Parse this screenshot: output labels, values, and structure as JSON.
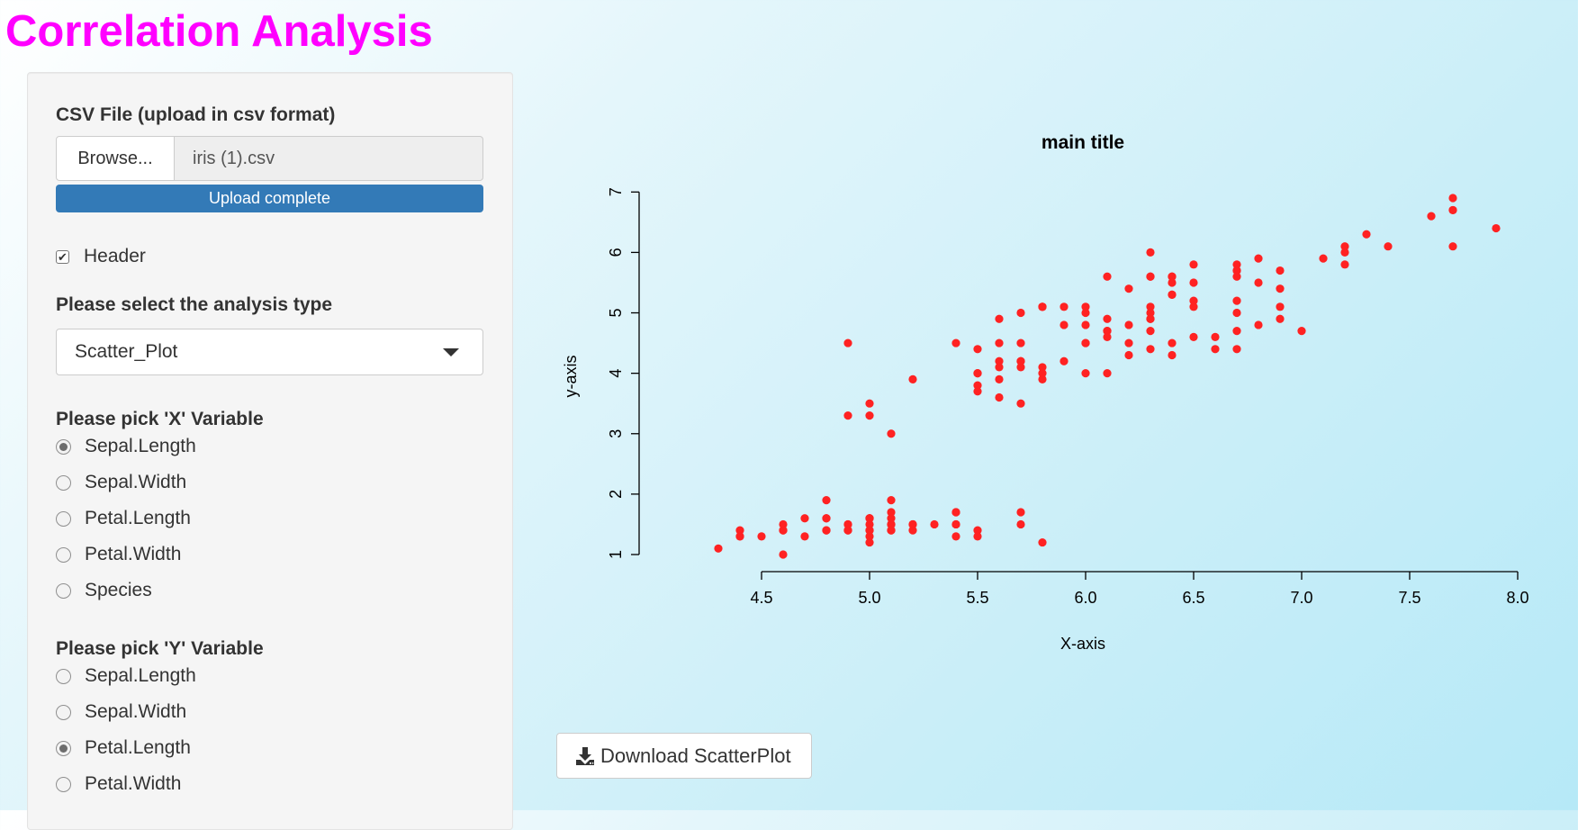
{
  "app": {
    "title": "Correlation Analysis"
  },
  "sidebar": {
    "file": {
      "label": "CSV File (upload in csv format)",
      "browse_label": "Browse...",
      "file_name": "iris (1).csv",
      "progress_label": "Upload complete",
      "progress": 1.0
    },
    "header_checkbox": {
      "label": "Header",
      "checked": true
    },
    "analysis": {
      "label": "Please select the analysis type",
      "selected": "Scatter_Plot"
    },
    "x_variable": {
      "label": "Please pick 'X' Variable",
      "options": [
        "Sepal.Length",
        "Sepal.Width",
        "Petal.Length",
        "Petal.Width",
        "Species"
      ],
      "selected": "Sepal.Length"
    },
    "y_variable": {
      "label": "Please pick 'Y' Variable",
      "options": [
        "Sepal.Length",
        "Sepal.Width",
        "Petal.Length",
        "Petal.Width"
      ],
      "selected": "Petal.Length"
    }
  },
  "download": {
    "label": "Download ScatterPlot",
    "icon": "download-icon"
  },
  "chart_data": {
    "type": "scatter",
    "title": "main title",
    "xlabel": "X-axis",
    "ylabel": "y-axis",
    "xlim": [
      4.3,
      7.9
    ],
    "ylim": [
      1,
      6.9
    ],
    "xticks": [
      "4.5",
      "5.0",
      "5.5",
      "6.0",
      "6.5",
      "7.0",
      "7.5",
      "8.0"
    ],
    "yticks": [
      "1",
      "2",
      "3",
      "4",
      "5",
      "6",
      "7"
    ],
    "grid": false,
    "point_color": "#ff2222",
    "points": [
      [
        5.1,
        1.4
      ],
      [
        4.9,
        1.4
      ],
      [
        4.7,
        1.3
      ],
      [
        4.6,
        1.5
      ],
      [
        5.0,
        1.4
      ],
      [
        5.4,
        1.7
      ],
      [
        4.6,
        1.4
      ],
      [
        5.0,
        1.5
      ],
      [
        4.4,
        1.4
      ],
      [
        4.9,
        1.5
      ],
      [
        5.4,
        1.5
      ],
      [
        4.8,
        1.6
      ],
      [
        4.8,
        1.4
      ],
      [
        4.3,
        1.1
      ],
      [
        5.8,
        1.2
      ],
      [
        5.7,
        1.5
      ],
      [
        5.4,
        1.3
      ],
      [
        5.1,
        1.4
      ],
      [
        5.7,
        1.7
      ],
      [
        5.1,
        1.5
      ],
      [
        5.4,
        1.7
      ],
      [
        5.1,
        1.5
      ],
      [
        4.6,
        1.0
      ],
      [
        5.1,
        1.7
      ],
      [
        4.8,
        1.9
      ],
      [
        5.0,
        1.6
      ],
      [
        5.0,
        1.6
      ],
      [
        5.2,
        1.5
      ],
      [
        5.2,
        1.4
      ],
      [
        4.7,
        1.6
      ],
      [
        4.8,
        1.6
      ],
      [
        5.4,
        1.5
      ],
      [
        5.2,
        1.5
      ],
      [
        5.5,
        1.4
      ],
      [
        4.9,
        1.5
      ],
      [
        5.0,
        1.2
      ],
      [
        5.5,
        1.3
      ],
      [
        4.9,
        1.4
      ],
      [
        4.4,
        1.3
      ],
      [
        5.1,
        1.5
      ],
      [
        5.0,
        1.3
      ],
      [
        4.5,
        1.3
      ],
      [
        4.4,
        1.3
      ],
      [
        5.0,
        1.6
      ],
      [
        5.1,
        1.9
      ],
      [
        4.8,
        1.4
      ],
      [
        5.1,
        1.6
      ],
      [
        4.6,
        1.4
      ],
      [
        5.3,
        1.5
      ],
      [
        5.0,
        1.4
      ],
      [
        7.0,
        4.7
      ],
      [
        6.4,
        4.5
      ],
      [
        6.9,
        4.9
      ],
      [
        5.5,
        4.0
      ],
      [
        6.5,
        4.6
      ],
      [
        5.7,
        4.5
      ],
      [
        6.3,
        4.7
      ],
      [
        4.9,
        3.3
      ],
      [
        6.6,
        4.6
      ],
      [
        5.2,
        3.9
      ],
      [
        5.0,
        3.5
      ],
      [
        5.9,
        4.2
      ],
      [
        6.0,
        4.0
      ],
      [
        6.1,
        4.7
      ],
      [
        5.6,
        3.6
      ],
      [
        6.7,
        4.4
      ],
      [
        5.6,
        4.5
      ],
      [
        5.8,
        4.1
      ],
      [
        6.2,
        4.5
      ],
      [
        5.6,
        3.9
      ],
      [
        5.9,
        4.8
      ],
      [
        6.1,
        4.0
      ],
      [
        6.3,
        4.9
      ],
      [
        6.1,
        4.7
      ],
      [
        6.4,
        4.3
      ],
      [
        6.6,
        4.4
      ],
      [
        6.8,
        4.8
      ],
      [
        6.7,
        5.0
      ],
      [
        6.0,
        4.5
      ],
      [
        5.7,
        3.5
      ],
      [
        5.5,
        3.8
      ],
      [
        5.5,
        3.7
      ],
      [
        5.8,
        3.9
      ],
      [
        6.0,
        5.1
      ],
      [
        5.4,
        4.5
      ],
      [
        6.0,
        4.5
      ],
      [
        6.7,
        4.7
      ],
      [
        6.3,
        4.4
      ],
      [
        5.6,
        4.1
      ],
      [
        5.5,
        4.0
      ],
      [
        5.5,
        4.4
      ],
      [
        6.1,
        4.6
      ],
      [
        5.8,
        4.0
      ],
      [
        5.0,
        3.3
      ],
      [
        5.6,
        4.2
      ],
      [
        5.7,
        4.2
      ],
      [
        5.7,
        4.2
      ],
      [
        6.2,
        4.3
      ],
      [
        5.1,
        3.0
      ],
      [
        5.7,
        4.1
      ],
      [
        6.3,
        6.0
      ],
      [
        5.8,
        5.1
      ],
      [
        7.1,
        5.9
      ],
      [
        6.3,
        5.6
      ],
      [
        6.5,
        5.8
      ],
      [
        7.6,
        6.6
      ],
      [
        4.9,
        4.5
      ],
      [
        7.3,
        6.3
      ],
      [
        6.7,
        5.8
      ],
      [
        7.2,
        6.1
      ],
      [
        6.5,
        5.1
      ],
      [
        6.4,
        5.3
      ],
      [
        6.8,
        5.5
      ],
      [
        5.7,
        5.0
      ],
      [
        5.8,
        5.1
      ],
      [
        6.4,
        5.3
      ],
      [
        6.5,
        5.5
      ],
      [
        7.7,
        6.7
      ],
      [
        7.7,
        6.9
      ],
      [
        6.0,
        5.0
      ],
      [
        6.9,
        5.7
      ],
      [
        5.6,
        4.9
      ],
      [
        7.7,
        6.7
      ],
      [
        6.3,
        4.9
      ],
      [
        6.7,
        5.7
      ],
      [
        7.2,
        6.0
      ],
      [
        6.2,
        4.8
      ],
      [
        6.1,
        4.9
      ],
      [
        6.4,
        5.6
      ],
      [
        7.2,
        5.8
      ],
      [
        7.4,
        6.1
      ],
      [
        7.9,
        6.4
      ],
      [
        6.4,
        5.6
      ],
      [
        6.3,
        5.1
      ],
      [
        6.1,
        5.6
      ],
      [
        7.7,
        6.1
      ],
      [
        6.3,
        5.6
      ],
      [
        6.4,
        5.5
      ],
      [
        6.0,
        4.8
      ],
      [
        6.9,
        5.4
      ],
      [
        6.7,
        5.6
      ],
      [
        6.9,
        5.1
      ],
      [
        5.8,
        5.1
      ],
      [
        6.8,
        5.9
      ],
      [
        6.7,
        5.7
      ],
      [
        6.7,
        5.2
      ],
      [
        6.3,
        5.0
      ],
      [
        6.5,
        5.2
      ],
      [
        6.2,
        5.4
      ],
      [
        5.9,
        5.1
      ]
    ]
  }
}
